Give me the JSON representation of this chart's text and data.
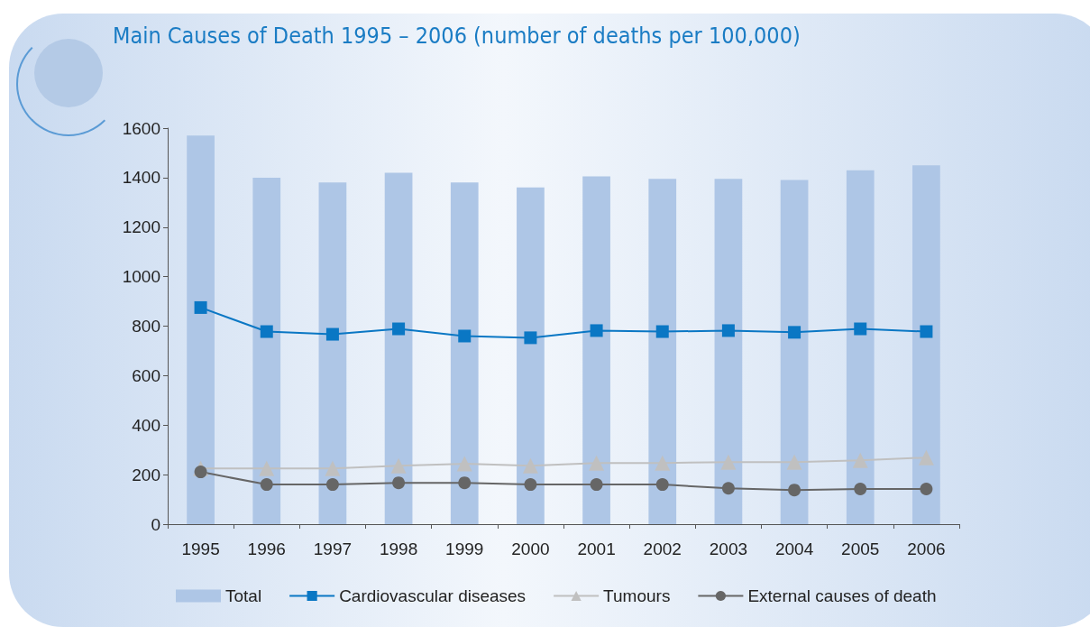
{
  "chart_data": {
    "type": "bar",
    "title": "Main Causes of Death 1995 – 2006 (number of deaths per 100,000)",
    "categories": [
      "1995",
      "1996",
      "1997",
      "1998",
      "1999",
      "2000",
      "2001",
      "2002",
      "2003",
      "2004",
      "2005",
      "2006"
    ],
    "series": [
      {
        "name": "Total",
        "color": "#aec6e6",
        "values": [
          1570,
          1400,
          1380,
          1420,
          1380,
          1360,
          1405,
          1395,
          1395,
          1390,
          1430,
          1450
        ]
      },
      {
        "name": "Cardiovascular diseases",
        "type": "line",
        "marker": "square",
        "color": "#0a77c4",
        "values": [
          875,
          778,
          767,
          789,
          760,
          753,
          782,
          778,
          782,
          775,
          789,
          778
        ]
      },
      {
        "name": "Tumours",
        "type": "line",
        "marker": "triangle",
        "color": "#c0c0c0",
        "values": [
          225,
          225,
          225,
          236,
          244,
          236,
          247,
          247,
          251,
          251,
          258,
          269
        ]
      },
      {
        "name": "External causes of death",
        "type": "line",
        "marker": "circle",
        "color": "#666666",
        "values": [
          211,
          160,
          160,
          167,
          167,
          160,
          160,
          160,
          145,
          138,
          142,
          142
        ]
      }
    ],
    "ylim": [
      0,
      1600
    ],
    "yticks": [
      0,
      200,
      400,
      600,
      800,
      1000,
      1200,
      1400,
      1600
    ],
    "grid": false,
    "legend": "bottom"
  }
}
